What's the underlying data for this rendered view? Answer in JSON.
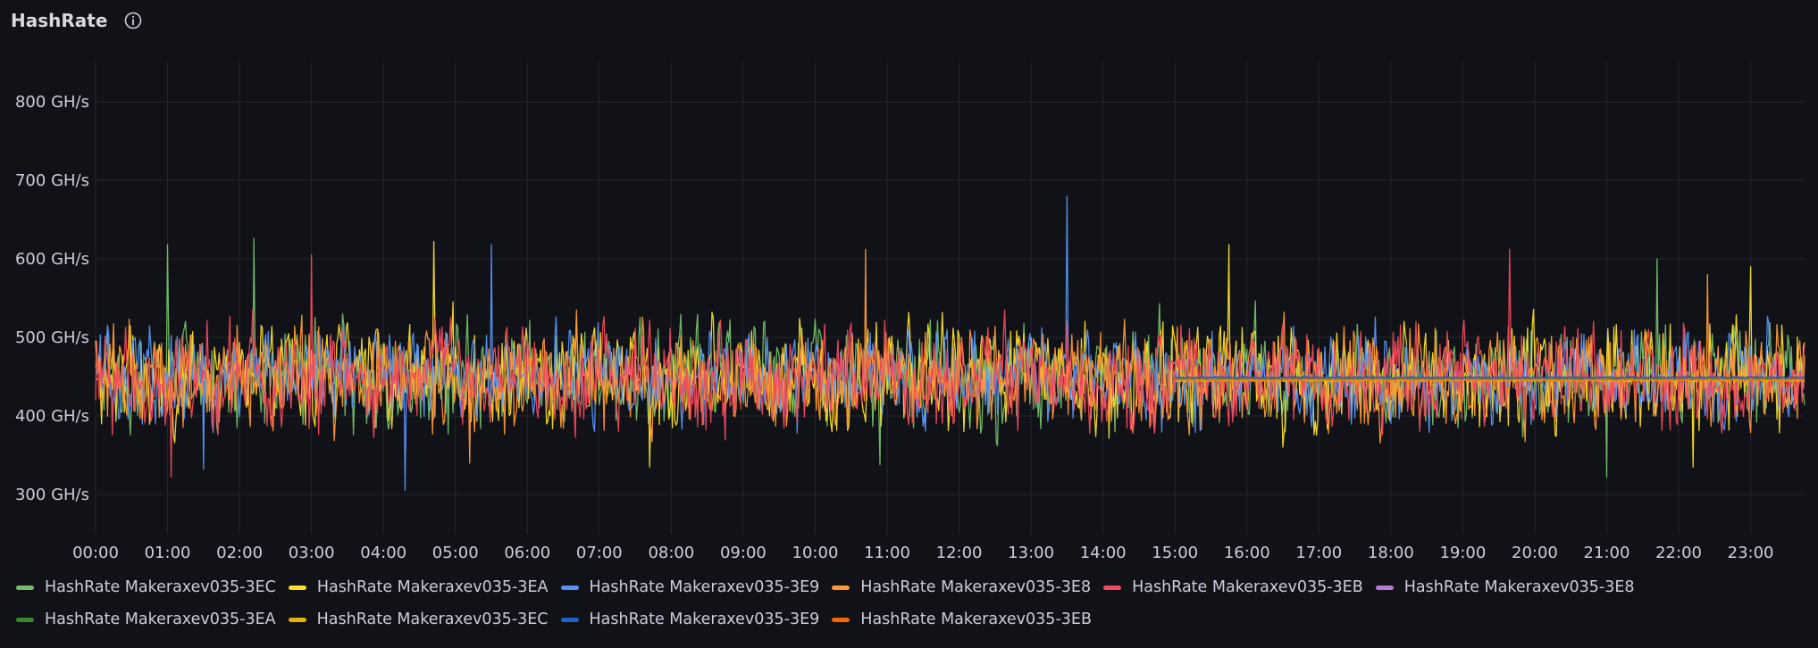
{
  "panel": {
    "title": "HashRate",
    "info_icon": "info-circle-icon"
  },
  "chart_data": {
    "type": "line",
    "title": "HashRate",
    "xlabel": "",
    "ylabel": "",
    "y_unit": "GH/s",
    "ylim": [
      250,
      850
    ],
    "y_ticks": [
      300,
      400,
      500,
      600,
      700,
      800
    ],
    "y_tick_labels": [
      "300 GH/s",
      "400 GH/s",
      "500 GH/s",
      "600 GH/s",
      "700 GH/s",
      "800 GH/s"
    ],
    "x_tick_labels": [
      "00:00",
      "01:00",
      "02:00",
      "03:00",
      "04:00",
      "05:00",
      "06:00",
      "07:00",
      "08:00",
      "09:00",
      "10:00",
      "11:00",
      "12:00",
      "13:00",
      "14:00",
      "15:00",
      "16:00",
      "17:00",
      "18:00",
      "19:00",
      "20:00",
      "21:00",
      "22:00",
      "23:00"
    ],
    "xlim_hours": [
      0,
      23.75
    ],
    "grid": true,
    "legend_position": "bottom",
    "series": [
      {
        "name": "HashRate Makeraxev035-3EC",
        "color": "#73bf69",
        "start_hour": 0,
        "end_hour": 23.75,
        "mean": 450,
        "spread": 55,
        "peaks": [
          [
            1.0,
            618
          ],
          [
            2.2,
            626
          ],
          [
            21.7,
            600
          ]
        ],
        "dips": [
          [
            10.9,
            338
          ],
          [
            21.0,
            322
          ]
        ]
      },
      {
        "name": "HashRate Makeraxev035-3EA",
        "color": "#fade2a",
        "start_hour": 0,
        "end_hour": 23.75,
        "mean": 450,
        "spread": 55,
        "peaks": [
          [
            4.7,
            622
          ],
          [
            15.75,
            618
          ],
          [
            23.0,
            590
          ]
        ],
        "dips": [
          [
            7.7,
            335
          ],
          [
            22.2,
            335
          ]
        ]
      },
      {
        "name": "HashRate Makeraxev035-3E9",
        "color": "#5794f2",
        "start_hour": 0,
        "end_hour": 23.75,
        "mean": 450,
        "spread": 50,
        "peaks": [
          [
            13.5,
            680
          ],
          [
            5.5,
            618
          ]
        ],
        "dips": [
          [
            4.3,
            305
          ],
          [
            1.5,
            332
          ]
        ]
      },
      {
        "name": "HashRate Makeraxev035-3E8",
        "color": "#ff9830",
        "start_hour": 0,
        "end_hour": 23.75,
        "mean": 450,
        "spread": 55,
        "peaks": [
          [
            10.7,
            612
          ],
          [
            22.4,
            580
          ]
        ],
        "dips": [
          [
            5.2,
            340
          ]
        ]
      },
      {
        "name": "HashRate Makeraxev035-3EB",
        "color": "#f2495c",
        "start_hour": 0,
        "end_hour": 23.75,
        "mean": 450,
        "spread": 55,
        "peaks": [
          [
            3.0,
            605
          ],
          [
            19.65,
            612
          ]
        ],
        "dips": [
          [
            1.05,
            322
          ]
        ]
      },
      {
        "name": "HashRate Makeraxev035-3E8",
        "color": "#b877d9",
        "start_hour": 15.0,
        "end_hour": 23.75,
        "mean": 447,
        "spread": 2,
        "peaks": [],
        "dips": []
      },
      {
        "name": "HashRate Makeraxev035-3EA",
        "color": "#37872d",
        "start_hour": 15.0,
        "end_hour": 23.75,
        "mean": 448,
        "spread": 2,
        "peaks": [],
        "dips": []
      },
      {
        "name": "HashRate Makeraxev035-3EC",
        "color": "#e0b400",
        "start_hour": 15.0,
        "end_hour": 23.75,
        "mean": 445,
        "spread": 2,
        "peaks": [],
        "dips": []
      },
      {
        "name": "HashRate Makeraxev035-3E9",
        "color": "#1f60c4",
        "start_hour": 15.0,
        "end_hour": 23.75,
        "mean": 449,
        "spread": 2,
        "peaks": [],
        "dips": []
      },
      {
        "name": "HashRate Makeraxev035-3EB",
        "color": "#fa6400",
        "start_hour": 15.0,
        "end_hour": 23.75,
        "mean": 446,
        "spread": 2,
        "peaks": [],
        "dips": []
      }
    ],
    "legend_rows": [
      [
        0,
        1,
        2,
        3,
        4,
        5
      ],
      [
        6,
        7,
        8,
        9
      ]
    ]
  }
}
